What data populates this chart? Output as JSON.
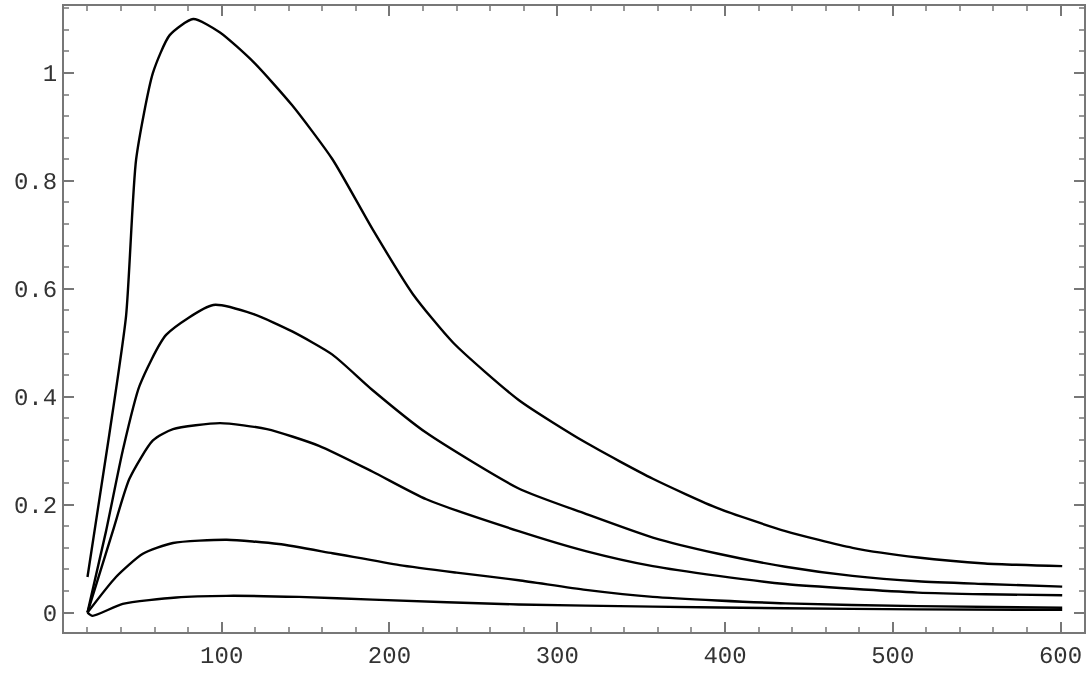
{
  "chart_data": {
    "type": "line",
    "xlim": [
      6,
      614
    ],
    "ylim": [
      -0.036,
      1.124
    ],
    "xticks": [
      100,
      200,
      300,
      400,
      500,
      600
    ],
    "yticks": [
      0,
      0.2,
      0.4,
      0.6,
      0.8,
      1
    ],
    "grid": false,
    "marker": "none",
    "line_style": "solid",
    "series": [
      {
        "color": "#000000",
        "x": [
          20,
          33,
          43,
          49,
          59,
          69,
          83,
          99,
          119,
          142,
          166,
          190,
          214,
          238,
          277,
          317,
          357,
          396,
          436,
          476,
          515,
          555,
          601
        ],
        "values": [
          0.066,
          0.33,
          0.55,
          0.84,
          1.0,
          1.07,
          1.1,
          1.075,
          1.02,
          0.94,
          0.84,
          0.71,
          0.59,
          0.5,
          0.394,
          0.315,
          0.248,
          0.193,
          0.151,
          0.12,
          0.102,
          0.091,
          0.086
        ]
      },
      {
        "color": "#000000",
        "x": [
          20,
          31,
          41,
          51,
          67,
          95,
          119,
          142,
          166,
          190,
          222,
          277,
          317,
          357,
          396,
          436,
          476,
          515,
          555,
          601
        ],
        "values": [
          0,
          0.15,
          0.3,
          0.42,
          0.515,
          0.57,
          0.553,
          0.521,
          0.478,
          0.412,
          0.333,
          0.23,
          0.183,
          0.139,
          0.109,
          0.085,
          0.068,
          0.058,
          0.053,
          0.048
        ]
      },
      {
        "color": "#000000",
        "x": [
          20,
          35,
          45,
          59,
          71,
          99,
          127,
          158,
          190,
          222,
          277,
          317,
          357,
          396,
          436,
          476,
          515,
          555,
          601
        ],
        "values": [
          0,
          0.15,
          0.248,
          0.319,
          0.34,
          0.351,
          0.34,
          0.309,
          0.261,
          0.21,
          0.151,
          0.114,
          0.086,
          0.068,
          0.053,
          0.044,
          0.037,
          0.034,
          0.032
        ]
      },
      {
        "color": "#000000",
        "x": [
          20,
          37,
          53,
          71,
          103,
          134,
          166,
          206,
          240,
          277,
          317,
          357,
          436,
          515,
          601
        ],
        "values": [
          0,
          0.066,
          0.109,
          0.129,
          0.135,
          0.127,
          0.11,
          0.088,
          0.074,
          0.06,
          0.042,
          0.029,
          0.017,
          0.012,
          0.009
        ]
      },
      {
        "color": "#000000",
        "x": [
          20,
          23,
          41,
          73,
          103,
          146,
          190,
          277,
          357,
          436,
          515,
          601
        ],
        "values": [
          0,
          -0.006,
          0.016,
          0.028,
          0.031,
          0.029,
          0.024,
          0.015,
          0.011,
          0.008,
          0.006,
          0.005
        ]
      }
    ]
  }
}
